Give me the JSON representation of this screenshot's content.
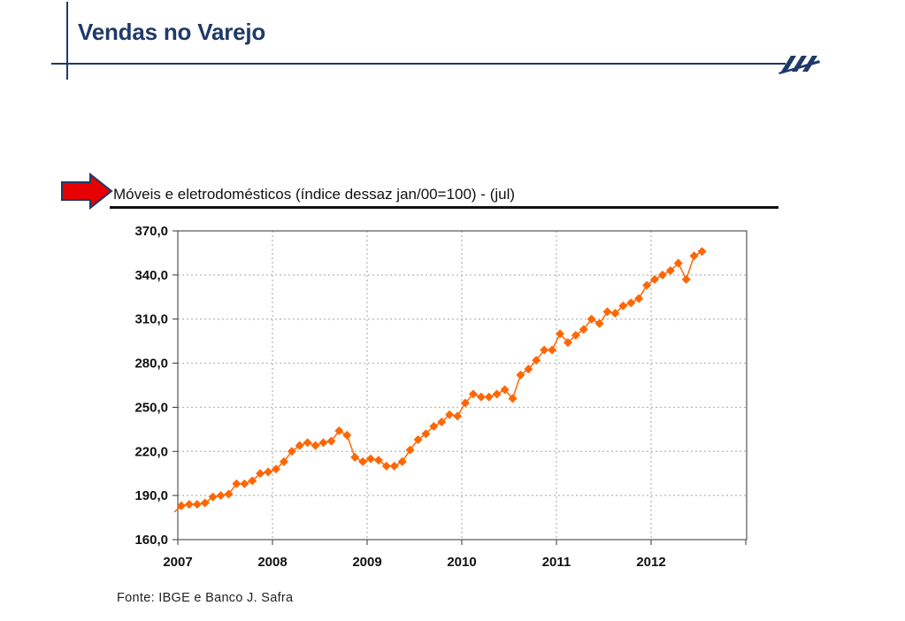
{
  "header": {
    "title": "Vendas no Varejo"
  },
  "colors": {
    "brand": "#1f3a68",
    "accent": "#ff6600",
    "arrow": "#e60000",
    "arrow_outline": "#1f3a68"
  },
  "icons": {
    "logo": "stripes-logo-icon",
    "pointer": "right-arrow-icon"
  },
  "chart_data": {
    "type": "line",
    "title": "Móveis e eletrodomésticos (índice dessaz jan/00=100) - (jul)",
    "xlabel": "",
    "ylabel": "",
    "ylim": [
      160,
      370
    ],
    "yticks": [
      "370,0",
      "340,0",
      "310,0",
      "280,0",
      "250,0",
      "220,0",
      "190,0",
      "160,0"
    ],
    "xticks": [
      "2007",
      "2008",
      "2009",
      "2010",
      "2011",
      "2012"
    ],
    "grid": true,
    "legend": "none",
    "series": [
      {
        "start": "2007-01",
        "frequency": "monthly",
        "marker": "diamond",
        "values": [
          183,
          184,
          184,
          185,
          189,
          190,
          191,
          198,
          198,
          200,
          205,
          206,
          208,
          213,
          220,
          224,
          226,
          224,
          226,
          227,
          234,
          231,
          216,
          213,
          215,
          214,
          210,
          210,
          213,
          221,
          228,
          232,
          237,
          240,
          245,
          244,
          253,
          259,
          257,
          257,
          259,
          262,
          256,
          272,
          276,
          282,
          289,
          289,
          300,
          294,
          299,
          303,
          310,
          307,
          315,
          314,
          319,
          321,
          324,
          333,
          337,
          340,
          343,
          348,
          337,
          353,
          356
        ]
      }
    ]
  },
  "footer": {
    "source": "Fonte: IBGE e Banco J. Safra"
  }
}
